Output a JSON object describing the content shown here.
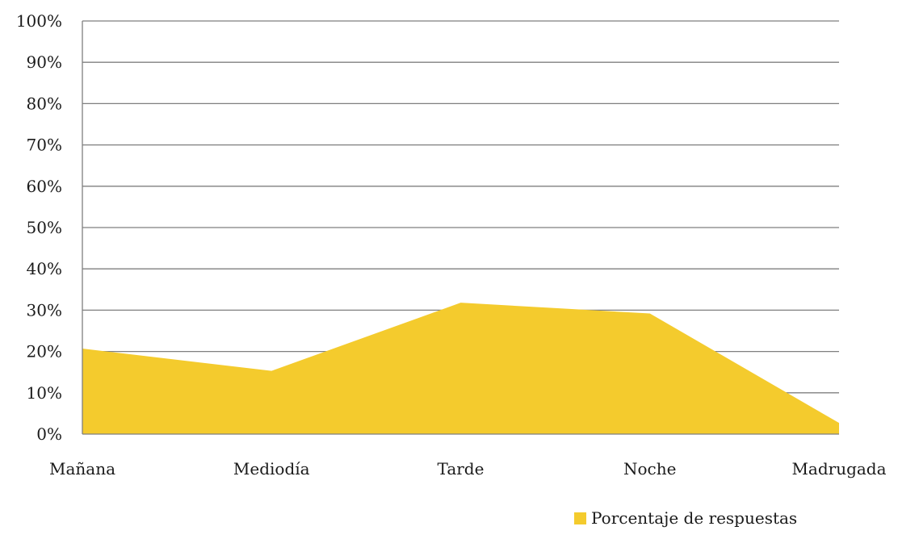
{
  "chart_data": {
    "type": "area",
    "categories": [
      "Mañana",
      "Mediodía",
      "Tarde",
      "Noche",
      "Madrugada"
    ],
    "series": [
      {
        "name": "Porcentaje de respuestas",
        "values": [
          20.7,
          15.3,
          31.8,
          29.2,
          2.7
        ],
        "color": "#F4CB2D"
      }
    ],
    "ylim": [
      0,
      100
    ],
    "yticks": [
      "0%",
      "10%",
      "20%",
      "30%",
      "40%",
      "50%",
      "60%",
      "70%",
      "80%",
      "90%",
      "100%"
    ],
    "grid": true,
    "legend_position": "bottom-right",
    "gridline_color": "#7f7f7f"
  }
}
